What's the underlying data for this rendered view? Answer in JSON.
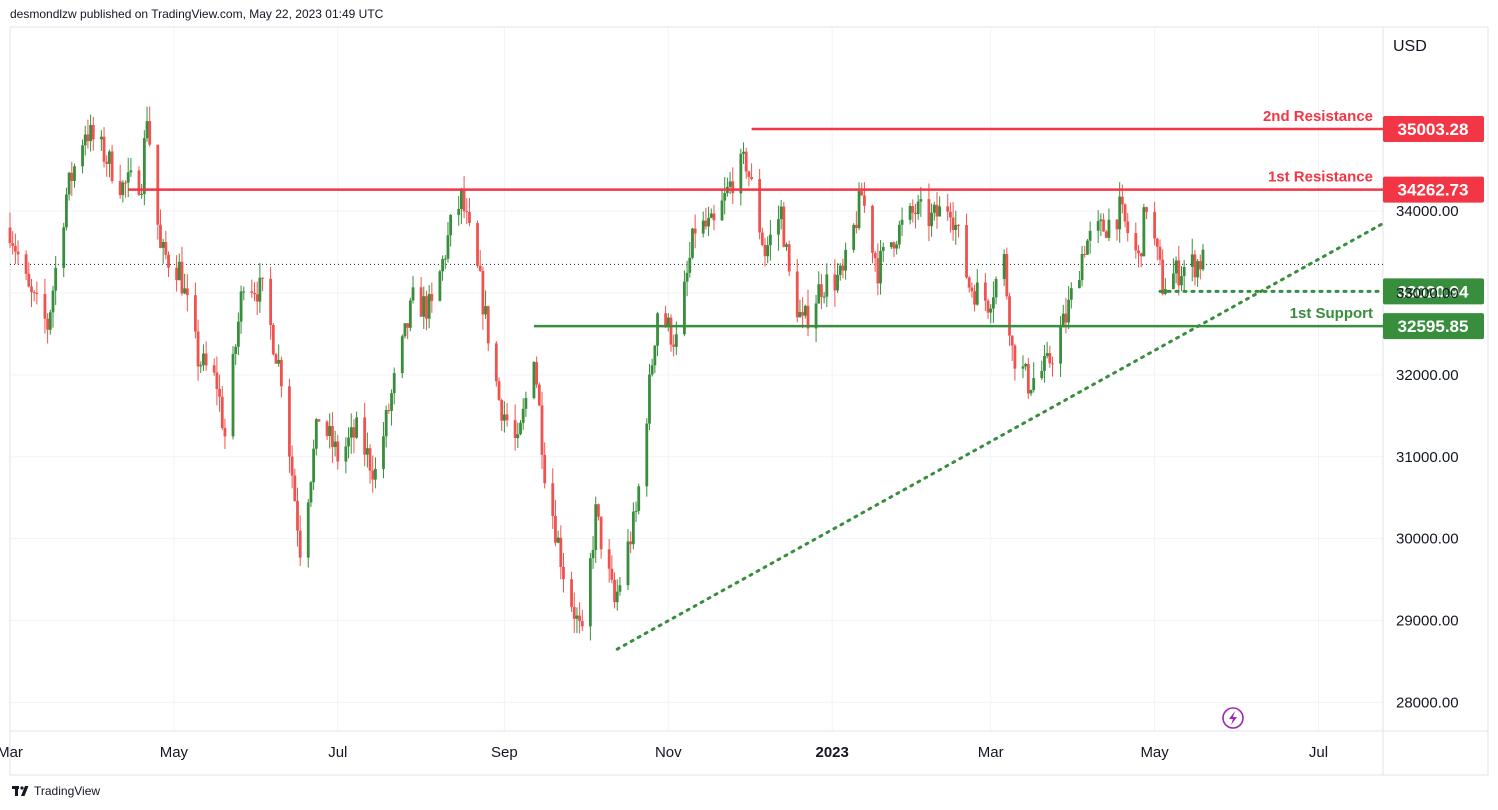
{
  "header": {
    "published_line": "desmondlzw published on TradingView.com, May 22, 2023 01:49 UTC"
  },
  "footer": {
    "brand": "TradingView"
  },
  "colors": {
    "up": "#26a69a",
    "up_candle": "#388e3c",
    "down_candle": "#ef5350",
    "resistance": "#f23645",
    "support": "#388e3c",
    "grid": "#f0f3fa",
    "axis_text": "#131722"
  },
  "icons": {
    "bolt": "lightning-bolt-icon"
  },
  "chart_data": {
    "type": "candlestick",
    "currency": "USD",
    "y_ticks": [
      "34000.00",
      "33000.00",
      "32000.00",
      "31000.00",
      "30000.00",
      "29000.00",
      "28000.00"
    ],
    "y_tick_values": [
      34000,
      33000,
      32000,
      31000,
      30000,
      29000,
      28000
    ],
    "x_ticks": [
      "Mar",
      "May",
      "Jul",
      "Sep",
      "Nov",
      "2023",
      "Mar",
      "May",
      "Jul"
    ],
    "x_tick_dates": [
      "2022-03-01",
      "2022-05-01",
      "2022-07-01",
      "2022-09-01",
      "2022-11-01",
      "2023-01-01",
      "2023-03-01",
      "2023-05-01",
      "2023-07-01"
    ],
    "x_range": [
      "2022-03-01",
      "2023-07-25"
    ],
    "y_range": [
      27650,
      36250
    ],
    "last_price": 33350,
    "levels": [
      {
        "name": "2nd Resistance",
        "value": 35003.28,
        "label": "35003.28",
        "kind": "resistance",
        "from": "2022-12-02"
      },
      {
        "name": "1st Resistance",
        "value": 34262.73,
        "label": "34262.73",
        "kind": "resistance",
        "from": "2022-04-14"
      },
      {
        "name": "",
        "value": 33020.94,
        "label": "33020.94",
        "kind": "support-dotted",
        "from": "2023-05-03"
      },
      {
        "name": "1st Support",
        "value": 32595.85,
        "label": "32595.85",
        "kind": "support",
        "from": "2022-09-12"
      }
    ],
    "trendline": {
      "from": [
        "2022-10-13",
        28650
      ],
      "to": [
        "2023-07-25",
        33850
      ],
      "style": "dotted"
    },
    "anchors": [
      [
        "2022-03-01",
        33800
      ],
      [
        "2022-03-08",
        33000
      ],
      [
        "2022-03-15",
        32600
      ],
      [
        "2022-03-22",
        34200
      ],
      [
        "2022-03-29",
        35000
      ],
      [
        "2022-04-05",
        34700
      ],
      [
        "2022-04-12",
        34300
      ],
      [
        "2022-04-19",
        34400
      ],
      [
        "2022-04-21",
        35200
      ],
      [
        "2022-04-26",
        33500
      ],
      [
        "2022-05-03",
        33300
      ],
      [
        "2022-05-10",
        32200
      ],
      [
        "2022-05-17",
        31900
      ],
      [
        "2022-05-20",
        31250
      ],
      [
        "2022-05-27",
        33200
      ],
      [
        "2022-06-03",
        33000
      ],
      [
        "2022-06-10",
        32000
      ],
      [
        "2022-06-17",
        29900
      ],
      [
        "2022-06-24",
        31500
      ],
      [
        "2022-07-01",
        31000
      ],
      [
        "2022-07-08",
        31300
      ],
      [
        "2022-07-15",
        30800
      ],
      [
        "2022-07-22",
        31900
      ],
      [
        "2022-07-29",
        32900
      ],
      [
        "2022-08-05",
        32800
      ],
      [
        "2022-08-12",
        33800
      ],
      [
        "2022-08-16",
        34150
      ],
      [
        "2022-08-23",
        33100
      ],
      [
        "2022-08-30",
        31700
      ],
      [
        "2022-09-06",
        31100
      ],
      [
        "2022-09-12",
        32300
      ],
      [
        "2022-09-16",
        30850
      ],
      [
        "2022-09-23",
        29600
      ],
      [
        "2022-09-30",
        28750
      ],
      [
        "2022-10-05",
        30300
      ],
      [
        "2022-10-12",
        29200
      ],
      [
        "2022-10-20",
        30300
      ],
      [
        "2022-10-28",
        32800
      ],
      [
        "2022-11-04",
        32400
      ],
      [
        "2022-11-11",
        33800
      ],
      [
        "2022-11-18",
        33800
      ],
      [
        "2022-11-25",
        34400
      ],
      [
        "2022-11-30",
        34600
      ],
      [
        "2022-12-07",
        33500
      ],
      [
        "2022-12-13",
        34000
      ],
      [
        "2022-12-16",
        33200
      ],
      [
        "2022-12-21",
        32600
      ],
      [
        "2022-12-28",
        33100
      ],
      [
        "2023-01-05",
        33200
      ],
      [
        "2023-01-12",
        34200
      ],
      [
        "2023-01-18",
        33300
      ],
      [
        "2023-01-24",
        33700
      ],
      [
        "2023-02-01",
        34000
      ],
      [
        "2023-02-07",
        33900
      ],
      [
        "2023-02-14",
        34100
      ],
      [
        "2023-02-21",
        33100
      ],
      [
        "2023-02-28",
        32900
      ],
      [
        "2023-03-06",
        33400
      ],
      [
        "2023-03-09",
        32300
      ],
      [
        "2023-03-15",
        31900
      ],
      [
        "2023-03-22",
        32100
      ],
      [
        "2023-03-29",
        32700
      ],
      [
        "2023-04-05",
        33600
      ],
      [
        "2023-04-12",
        33800
      ],
      [
        "2023-04-18",
        34000
      ],
      [
        "2023-04-25",
        33400
      ],
      [
        "2023-04-28",
        34100
      ],
      [
        "2023-05-04",
        33100
      ],
      [
        "2023-05-11",
        33300
      ],
      [
        "2023-05-15",
        33350
      ],
      [
        "2023-05-19",
        33400
      ]
    ]
  }
}
